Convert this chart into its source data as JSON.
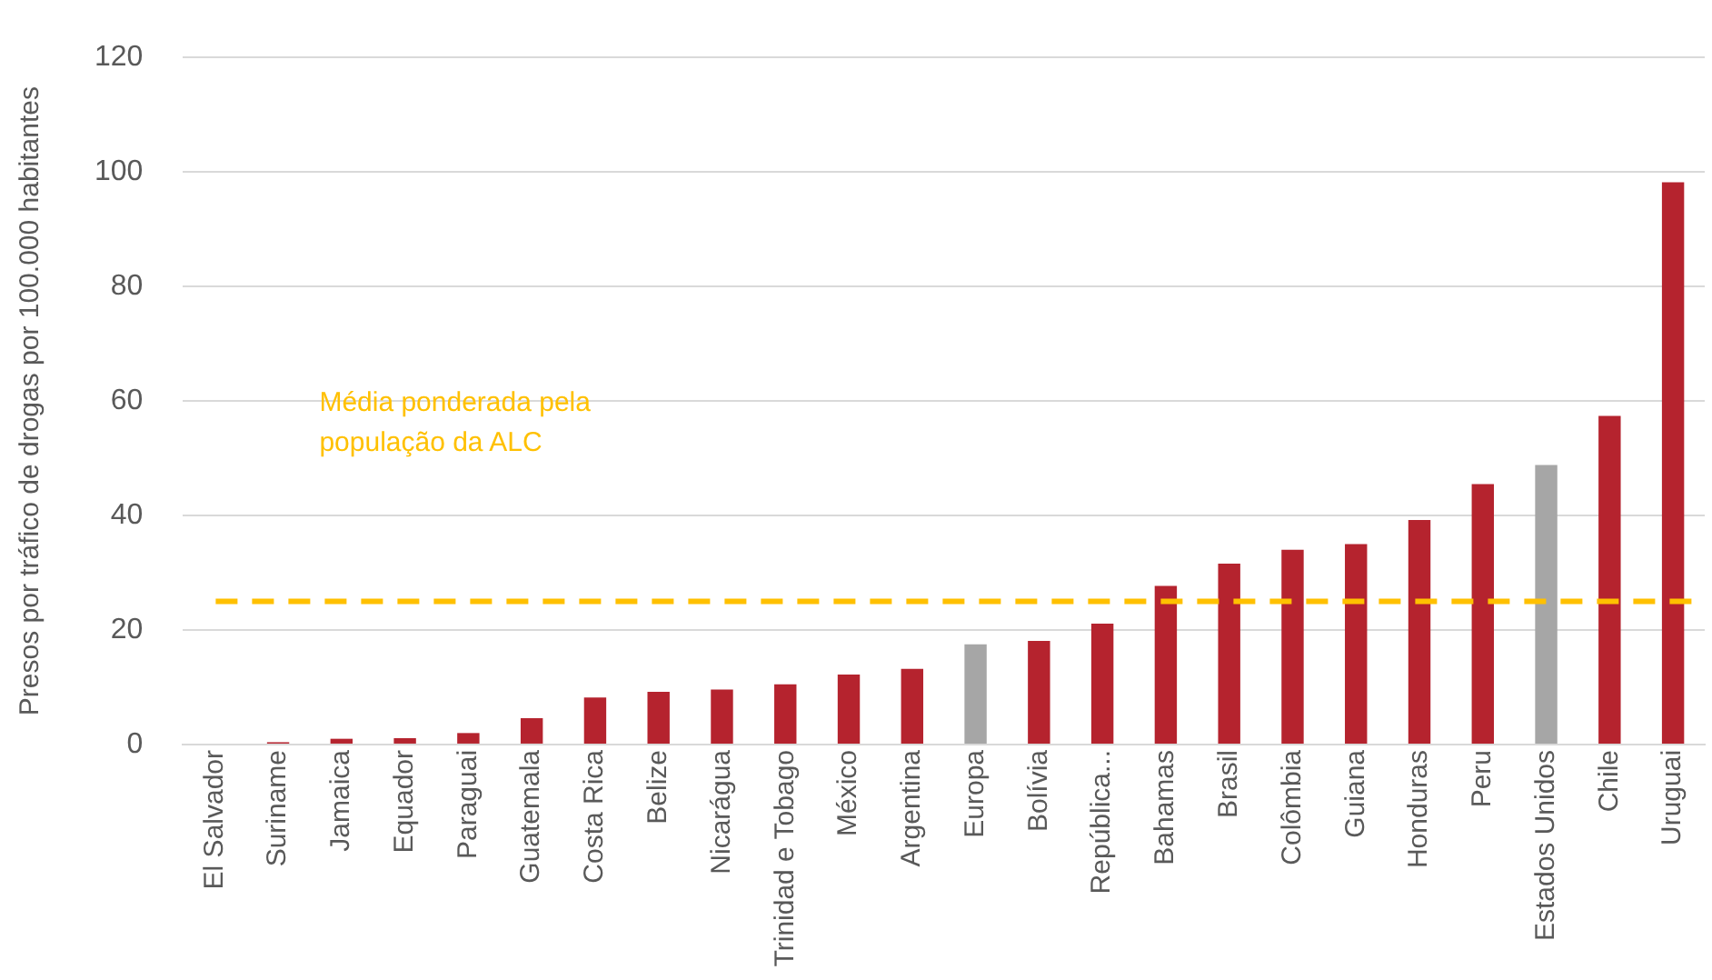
{
  "chart_data": {
    "type": "bar",
    "ylabel": "Presos por tráfico de drogas por 100.000 habitantes",
    "categories": [
      "El Salvador",
      "Suriname",
      "Jamaica",
      "Equador",
      "Paraguai",
      "Guatemala",
      "Costa Rica",
      "Belize",
      "Nicarágua",
      "Trinidad e Tobago",
      "México",
      "Argentina",
      "Europa",
      "Bolívia",
      "República...",
      "Bahamas",
      "Brasil",
      "Colômbia",
      "Guiana",
      "Honduras",
      "Peru",
      "Estados Unidos",
      "Chile",
      "Uruguai"
    ],
    "values": [
      0,
      0.4,
      1,
      1.1,
      2,
      4.6,
      8.2,
      9.2,
      9.6,
      10.5,
      12.2,
      13.2,
      17.5,
      18.1,
      21.1,
      27.7,
      31.6,
      34,
      35,
      39.2,
      45.5,
      48.8,
      57.4,
      98.2
    ],
    "colors": [
      "#b5232e",
      "#b5232e",
      "#b5232e",
      "#b5232e",
      "#b5232e",
      "#b5232e",
      "#b5232e",
      "#b5232e",
      "#b5232e",
      "#b5232e",
      "#b5232e",
      "#b5232e",
      "#a6a6a6",
      "#b5232e",
      "#b5232e",
      "#b5232e",
      "#b5232e",
      "#b5232e",
      "#b5232e",
      "#b5232e",
      "#b5232e",
      "#a6a6a6",
      "#b5232e",
      "#b5232e"
    ],
    "ylim": [
      0,
      120
    ],
    "yticks": [
      0,
      20,
      40,
      60,
      80,
      100,
      120
    ],
    "grid": "y",
    "ref_lines": [
      {
        "axis": "y",
        "value": 25,
        "label": "Média ponderada pela população da ALC",
        "color": "#ffc000",
        "line_style": "dashed"
      }
    ]
  }
}
